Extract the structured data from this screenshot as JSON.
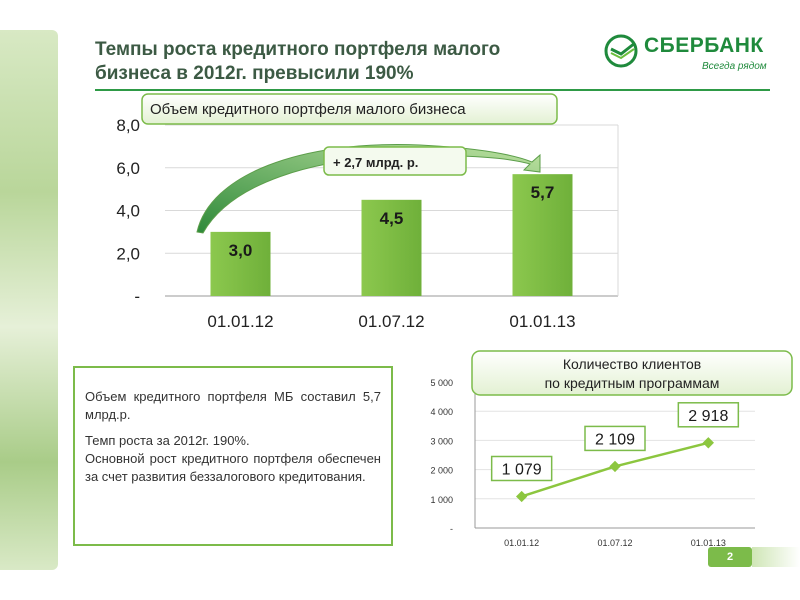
{
  "header": {
    "title_line1": "Темпы роста кредитного портфеля малого",
    "title_line2": "бизнеса в 2012г. превысили 190%"
  },
  "logo": {
    "name": "СБЕРБАНК",
    "tagline": "Всегда рядом"
  },
  "text_block": {
    "para1": "Объем кредитного портфеля МБ составил 5,7 млрд.р.",
    "para2_line1": "Темп роста за 2012г. 190%.",
    "para2_line2": "Основной рост кредитного портфеля обеспечен за счет развития беззалогового кредитования."
  },
  "page_number": "2",
  "colors": {
    "accent": "#7cbb4a",
    "bar": "#7cbb4a",
    "title": "#3c5a44",
    "brand": "#1f8a3c",
    "line": "#8cc63f"
  },
  "chart_data": [
    {
      "type": "bar",
      "title": "Объем кредитного портфеля малого бизнеса",
      "categories": [
        "01.01.12",
        "01.07.12",
        "01.01.13"
      ],
      "values": [
        3.0,
        4.5,
        5.7
      ],
      "value_labels": [
        "3,0",
        "4,5",
        "5,7"
      ],
      "ylim": [
        0,
        8
      ],
      "yticks": [
        "-",
        "2,0",
        "4,0",
        "6,0",
        "8,0"
      ],
      "grid": true,
      "annotation": "+ 2,7 млрд. р."
    },
    {
      "type": "line",
      "title_line1": "Количество клиентов",
      "title_line2": "по кредитным программам",
      "categories": [
        "01.01.12",
        "01.07.12",
        "01.01.13"
      ],
      "values": [
        1079,
        2109,
        2918
      ],
      "value_labels": [
        "1 079",
        "2 109",
        "2 918"
      ],
      "ylim": [
        0,
        5000
      ],
      "yticks": [
        "-",
        "1 000",
        "2 000",
        "3 000",
        "4 000",
        "5 000"
      ],
      "grid": true
    }
  ]
}
